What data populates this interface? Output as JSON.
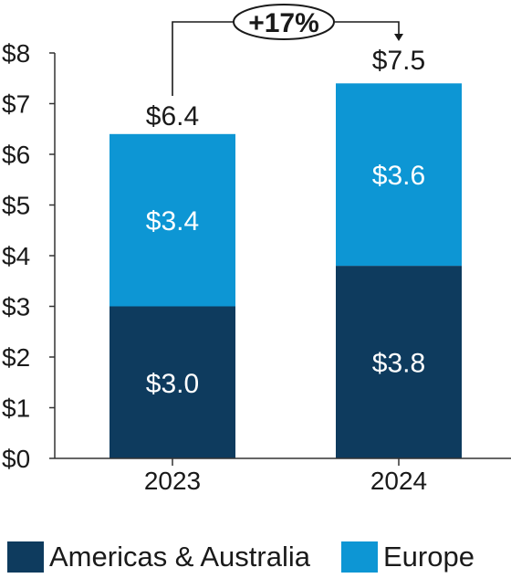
{
  "chart_data": {
    "type": "bar",
    "stacked": true,
    "categories": [
      "2023",
      "2024"
    ],
    "series": [
      {
        "name": "Americas & Australia",
        "values": [
          3.0,
          3.8
        ],
        "labels": [
          "$3.0",
          "$3.8"
        ],
        "color": "#0e3b5e"
      },
      {
        "name": "Europe",
        "values": [
          3.4,
          3.6
        ],
        "labels": [
          "$3.4",
          "$3.6"
        ],
        "color": "#0d96d4"
      }
    ],
    "totals": [
      6.4,
      7.5
    ],
    "total_labels": [
      "$6.4",
      "$7.5"
    ],
    "change_label": "+17%",
    "ylim": [
      0,
      8
    ],
    "yticks": [
      0,
      1,
      2,
      3,
      4,
      5,
      6,
      7,
      8
    ],
    "ytick_labels": [
      "$0",
      "$1",
      "$2",
      "$3",
      "$4",
      "$5",
      "$6",
      "$7",
      "$8"
    ],
    "title": "",
    "xlabel": "",
    "ylabel": "",
    "grid": false,
    "legend_position": "bottom"
  }
}
